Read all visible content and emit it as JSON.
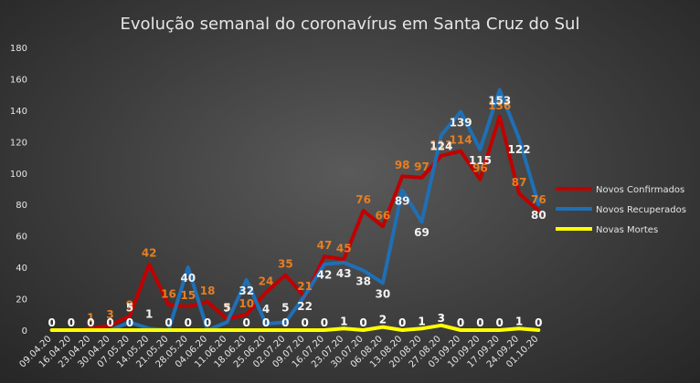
{
  "chart_data": {
    "type": "line",
    "title": "Evolução  semanal  do coronavírus  em Santa Cruz do Sul",
    "xlabel": "",
    "ylabel": "",
    "ylim": [
      0,
      180
    ],
    "yticks": [
      0,
      20,
      40,
      60,
      80,
      100,
      120,
      140,
      160,
      180
    ],
    "grid": false,
    "legend_position": "right",
    "categories": [
      "09.04.20",
      "16.04.20",
      "23.04.20",
      "30.04.20",
      "07.05.20",
      "14.05.20",
      "21.05.20",
      "28.05.20",
      "04.06.20",
      "11.06.20",
      "18.06.20",
      "25.06.20",
      "02.07.20",
      "09.07.20",
      "16.07.20",
      "23.07.20",
      "30.07.20",
      "06.08.20",
      "13.08.20",
      "20.08.20",
      "27.08.20",
      "03.09.20",
      "10.09.20",
      "17.09.20",
      "24.09.20",
      "01.10.20"
    ],
    "series": [
      {
        "name": "Novos Confirmados",
        "color": "#c00000",
        "label_color": "#e67e22",
        "values": [
          0,
          0,
          1,
          3,
          9,
          42,
          16,
          15,
          18,
          7,
          10,
          24,
          35,
          21,
          47,
          45,
          76,
          66,
          98,
          97,
          111,
          114,
          96,
          136,
          87,
          76
        ],
        "labels": [
          "",
          "",
          "1",
          "3",
          "9",
          "42",
          "16",
          "15",
          "18",
          "7",
          "10",
          "24",
          "35",
          "21",
          "47",
          "45",
          "76",
          "66",
          "98",
          "97",
          "111",
          "114",
          "96",
          "136",
          "87",
          "76"
        ]
      },
      {
        "name": "Novos Recuperados",
        "color": "#1f6fb5",
        "label_color": "#f2f2f2",
        "values": [
          0,
          0,
          0,
          0,
          5,
          1,
          0,
          40,
          0,
          5,
          32,
          4,
          5,
          22,
          42,
          43,
          38,
          30,
          89,
          69,
          124,
          139,
          115,
          153,
          122,
          80
        ],
        "labels": [
          "",
          "",
          "",
          "",
          "5",
          "1",
          "",
          "40",
          "",
          "5",
          "32",
          "4",
          "5",
          "22",
          "42",
          "43",
          "38",
          "30",
          "89",
          "69",
          "124",
          "139",
          "115",
          "153",
          "122",
          "80"
        ]
      },
      {
        "name": "Novas Mortes",
        "color": "#ffff00",
        "label_color": "#ffffff",
        "values": [
          0,
          0,
          0,
          0,
          0,
          0,
          0,
          0,
          0,
          0,
          0,
          0,
          0,
          0,
          0,
          1,
          0,
          2,
          0,
          1,
          3,
          0,
          0,
          0,
          1,
          0
        ],
        "labels": [
          "0",
          "0",
          "0",
          "0",
          "0",
          "",
          "0",
          "0",
          "0",
          "",
          "0",
          "0",
          "0",
          "0",
          "0",
          "1",
          "0",
          "2",
          "0",
          "1",
          "3",
          "0",
          "0",
          "0",
          "1",
          "0"
        ]
      }
    ]
  }
}
